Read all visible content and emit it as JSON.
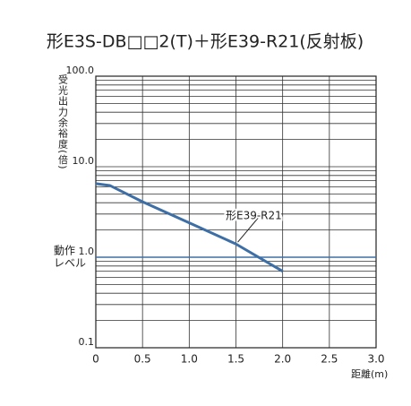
{
  "chart_data": {
    "type": "line",
    "title": "形E3S-DB□□2(T)＋形E39-R21(反射板)",
    "y_label": "受光出力余裕度(倍)",
    "x_label": "距離(m)",
    "x": [
      0,
      0.15,
      0.5,
      1.0,
      1.5,
      2.0
    ],
    "series": [
      {
        "name": "形E39-R21",
        "color": "#3d6fa6",
        "values": [
          6.5,
          6.2,
          4.1,
          2.4,
          1.4,
          0.7
        ]
      }
    ],
    "xlim": [
      0,
      3.0
    ],
    "xticks": [
      0,
      0.5,
      {
        "value": 1.0,
        "label": "1.0"
      },
      1.5,
      {
        "value": 2.0,
        "label": "2.0"
      },
      2.5,
      {
        "value": 3.0,
        "label": "3.0"
      }
    ],
    "ylim": [
      0.1,
      100
    ],
    "yticks": [
      0.1,
      {
        "value": 1,
        "label": "1.0"
      },
      {
        "value": 10,
        "label": "10.0"
      },
      {
        "value": 100,
        "label": "100.0"
      }
    ],
    "log_y": true,
    "grid": true,
    "reference_line": {
      "y": 1,
      "color": "#3d6fa6",
      "label_lines": [
        "動作",
        "レベル"
      ]
    }
  }
}
